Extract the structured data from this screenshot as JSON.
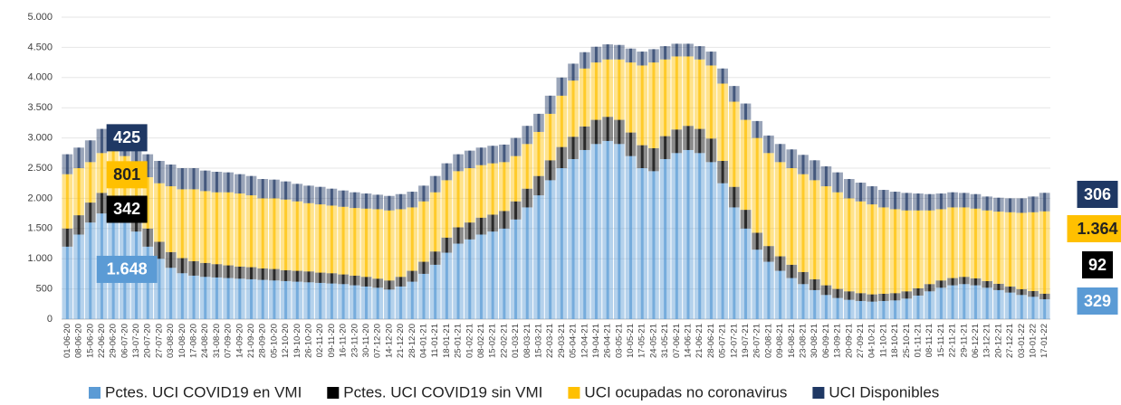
{
  "chart_data": {
    "type": "stacked_bar",
    "categories": [
      "01-06-20",
      "08-06-20",
      "15-06-20",
      "22-06-20",
      "29-06-20",
      "06-07-20",
      "13-07-20",
      "20-07-20",
      "27-07-20",
      "03-08-20",
      "10-08-20",
      "17-08-20",
      "24-08-20",
      "31-08-20",
      "07-09-20",
      "14-09-20",
      "21-09-20",
      "28-09-20",
      "05-10-20",
      "12-10-20",
      "19-10-20",
      "26-10-20",
      "02-11-20",
      "09-11-20",
      "16-11-20",
      "23-11-20",
      "30-11-20",
      "07-12-20",
      "14-12-20",
      "21-12-20",
      "28-12-20",
      "04-01-21",
      "11-01-21",
      "18-01-21",
      "25-01-21",
      "01-02-21",
      "08-02-21",
      "15-02-21",
      "22-02-21",
      "01-03-21",
      "08-03-21",
      "15-03-21",
      "22-03-21",
      "29-03-21",
      "05-04-21",
      "12-04-21",
      "19-04-21",
      "26-04-21",
      "03-05-21",
      "10-05-21",
      "17-05-21",
      "24-05-21",
      "31-05-21",
      "07-06-21",
      "14-06-21",
      "21-06-21",
      "28-06-21",
      "05-07-21",
      "12-07-21",
      "19-07-21",
      "26-07-21",
      "02-08-21",
      "09-08-21",
      "16-08-21",
      "23-08-21",
      "30-08-21",
      "06-09-21",
      "13-09-21",
      "20-09-21",
      "27-09-21",
      "04-10-21",
      "11-10-21",
      "18-10-21",
      "25-10-21",
      "01-11-21",
      "08-11-21",
      "15-11-21",
      "22-11-21",
      "29-11-21",
      "06-12-21",
      "13-12-21",
      "20-12-21",
      "27-12-21",
      "03-01-22",
      "10-01-22",
      "17-01-22"
    ],
    "series": [
      {
        "name": "Pctes. UCI COVID19 en VMI",
        "color": "#5b9bd5",
        "values": [
          1200,
          1400,
          1600,
          1750,
          1648,
          1600,
          1450,
          1200,
          1000,
          850,
          760,
          720,
          700,
          690,
          680,
          670,
          660,
          650,
          640,
          630,
          620,
          610,
          600,
          590,
          580,
          560,
          540,
          520,
          490,
          540,
          620,
          750,
          900,
          1100,
          1250,
          1320,
          1400,
          1450,
          1500,
          1650,
          1850,
          2050,
          2300,
          2500,
          2650,
          2800,
          2900,
          2950,
          2900,
          2700,
          2500,
          2450,
          2650,
          2750,
          2800,
          2750,
          2600,
          2250,
          1850,
          1500,
          1150,
          950,
          800,
          680,
          580,
          480,
          400,
          350,
          320,
          300,
          290,
          300,
          310,
          340,
          390,
          460,
          520,
          560,
          580,
          560,
          520,
          480,
          440,
          400,
          370,
          329
        ],
        "value_labels": [
          null,
          null,
          null,
          null,
          "1.648",
          null,
          null,
          null,
          null,
          null,
          null,
          null,
          null,
          null,
          null,
          null,
          null,
          null,
          null,
          null,
          null,
          null,
          null,
          null,
          null,
          null,
          null,
          null,
          null,
          null,
          null,
          null,
          null,
          null,
          null,
          null,
          null,
          null,
          null,
          null,
          null,
          null,
          null,
          null,
          null,
          null,
          null,
          null,
          null,
          null,
          null,
          null,
          null,
          null,
          null,
          null,
          null,
          null,
          null,
          null,
          null,
          null,
          null,
          null,
          null,
          null,
          null,
          null,
          null,
          null,
          null,
          null,
          null,
          null,
          null,
          null,
          null,
          null,
          null,
          null,
          null,
          null,
          null,
          null,
          null,
          "329"
        ]
      },
      {
        "name": "Pctes. UCI COVID19 sin VMI",
        "color": "#000000",
        "values": [
          300,
          320,
          330,
          340,
          342,
          330,
          320,
          300,
          280,
          260,
          250,
          240,
          230,
          220,
          210,
          200,
          200,
          190,
          190,
          180,
          180,
          180,
          170,
          170,
          160,
          160,
          160,
          150,
          150,
          160,
          180,
          200,
          220,
          250,
          270,
          280,
          280,
          280,
          290,
          300,
          310,
          320,
          330,
          350,
          370,
          390,
          400,
          400,
          400,
          390,
          380,
          380,
          380,
          390,
          400,
          400,
          390,
          370,
          340,
          310,
          280,
          260,
          240,
          220,
          200,
          180,
          160,
          150,
          140,
          130,
          120,
          120,
          120,
          120,
          120,
          120,
          120,
          120,
          120,
          115,
          110,
          105,
          100,
          95,
          95,
          92
        ],
        "value_labels": [
          null,
          null,
          null,
          null,
          "342",
          null,
          null,
          null,
          null,
          null,
          null,
          null,
          null,
          null,
          null,
          null,
          null,
          null,
          null,
          null,
          null,
          null,
          null,
          null,
          null,
          null,
          null,
          null,
          null,
          null,
          null,
          null,
          null,
          null,
          null,
          null,
          null,
          null,
          null,
          null,
          null,
          null,
          null,
          null,
          null,
          null,
          null,
          null,
          null,
          null,
          null,
          null,
          null,
          null,
          null,
          null,
          null,
          null,
          null,
          null,
          null,
          null,
          null,
          null,
          null,
          null,
          null,
          null,
          null,
          null,
          null,
          null,
          null,
          null,
          null,
          null,
          null,
          null,
          null,
          null,
          null,
          null,
          null,
          null,
          null,
          "92"
        ]
      },
      {
        "name": "UCI ocupadas no coronavirus",
        "color": "#ffc000",
        "values": [
          900,
          780,
          670,
          660,
          801,
          770,
          780,
          850,
          970,
          1090,
          1140,
          1190,
          1190,
          1190,
          1210,
          1210,
          1190,
          1160,
          1170,
          1170,
          1150,
          1130,
          1130,
          1120,
          1120,
          1120,
          1130,
          1150,
          1160,
          1120,
          1050,
          1000,
          980,
          950,
          930,
          900,
          870,
          850,
          810,
          750,
          740,
          730,
          770,
          850,
          930,
          960,
          950,
          950,
          1000,
          1160,
          1320,
          1420,
          1270,
          1210,
          1150,
          1150,
          1210,
          1280,
          1410,
          1490,
          1570,
          1540,
          1560,
          1600,
          1620,
          1640,
          1640,
          1600,
          1540,
          1520,
          1490,
          1430,
          1390,
          1340,
          1290,
          1220,
          1180,
          1170,
          1150,
          1155,
          1170,
          1195,
          1230,
          1265,
          1305,
          1364
        ],
        "value_labels": [
          null,
          null,
          null,
          null,
          "801",
          null,
          null,
          null,
          null,
          null,
          null,
          null,
          null,
          null,
          null,
          null,
          null,
          null,
          null,
          null,
          null,
          null,
          null,
          null,
          null,
          null,
          null,
          null,
          null,
          null,
          null,
          null,
          null,
          null,
          null,
          null,
          null,
          null,
          null,
          null,
          null,
          null,
          null,
          null,
          null,
          null,
          null,
          null,
          null,
          null,
          null,
          null,
          null,
          null,
          null,
          null,
          null,
          null,
          null,
          null,
          null,
          null,
          null,
          null,
          null,
          null,
          null,
          null,
          null,
          null,
          null,
          null,
          null,
          null,
          null,
          null,
          null,
          null,
          null,
          null,
          null,
          null,
          null,
          null,
          null,
          "1.364"
        ]
      },
      {
        "name": "UCI Disponibles",
        "color": "#1f3864",
        "values": [
          330,
          340,
          360,
          400,
          425,
          420,
          400,
          380,
          370,
          360,
          350,
          350,
          340,
          340,
          330,
          320,
          320,
          320,
          310,
          300,
          290,
          290,
          290,
          280,
          270,
          260,
          250,
          240,
          240,
          250,
          260,
          260,
          270,
          280,
          280,
          290,
          290,
          290,
          290,
          300,
          300,
          300,
          300,
          300,
          280,
          270,
          260,
          250,
          240,
          230,
          230,
          220,
          220,
          210,
          210,
          220,
          230,
          250,
          260,
          270,
          280,
          290,
          300,
          310,
          320,
          330,
          330,
          330,
          320,
          310,
          300,
          290,
          290,
          290,
          280,
          270,
          260,
          250,
          240,
          240,
          230,
          230,
          230,
          240,
          260,
          306
        ],
        "value_labels": [
          null,
          null,
          null,
          null,
          "425",
          null,
          null,
          null,
          null,
          null,
          null,
          null,
          null,
          null,
          null,
          null,
          null,
          null,
          null,
          null,
          null,
          null,
          null,
          null,
          null,
          null,
          null,
          null,
          null,
          null,
          null,
          null,
          null,
          null,
          null,
          null,
          null,
          null,
          null,
          null,
          null,
          null,
          null,
          null,
          null,
          null,
          null,
          null,
          null,
          null,
          null,
          null,
          null,
          null,
          null,
          null,
          null,
          null,
          null,
          null,
          null,
          null,
          null,
          null,
          null,
          null,
          null,
          null,
          null,
          null,
          null,
          null,
          null,
          null,
          null,
          null,
          null,
          null,
          null,
          null,
          null,
          null,
          null,
          null,
          null,
          "306"
        ]
      }
    ],
    "ylim": [
      0,
      5000
    ],
    "yticks": [
      0,
      500,
      {
        "value": 1000,
        "label": "1.000"
      },
      {
        "value": 1500,
        "label": "1.500"
      },
      {
        "value": 2000,
        "label": "2.000"
      },
      {
        "value": 2500,
        "label": "2.500"
      },
      {
        "value": 3000,
        "label": "3.000"
      },
      {
        "value": 3500,
        "label": "3.500"
      },
      {
        "value": 4000,
        "label": "4.000"
      },
      {
        "value": 4500,
        "label": "4.500"
      },
      {
        "value": 5000,
        "label": "5.000"
      }
    ],
    "grid": true,
    "legend": "bottom"
  }
}
